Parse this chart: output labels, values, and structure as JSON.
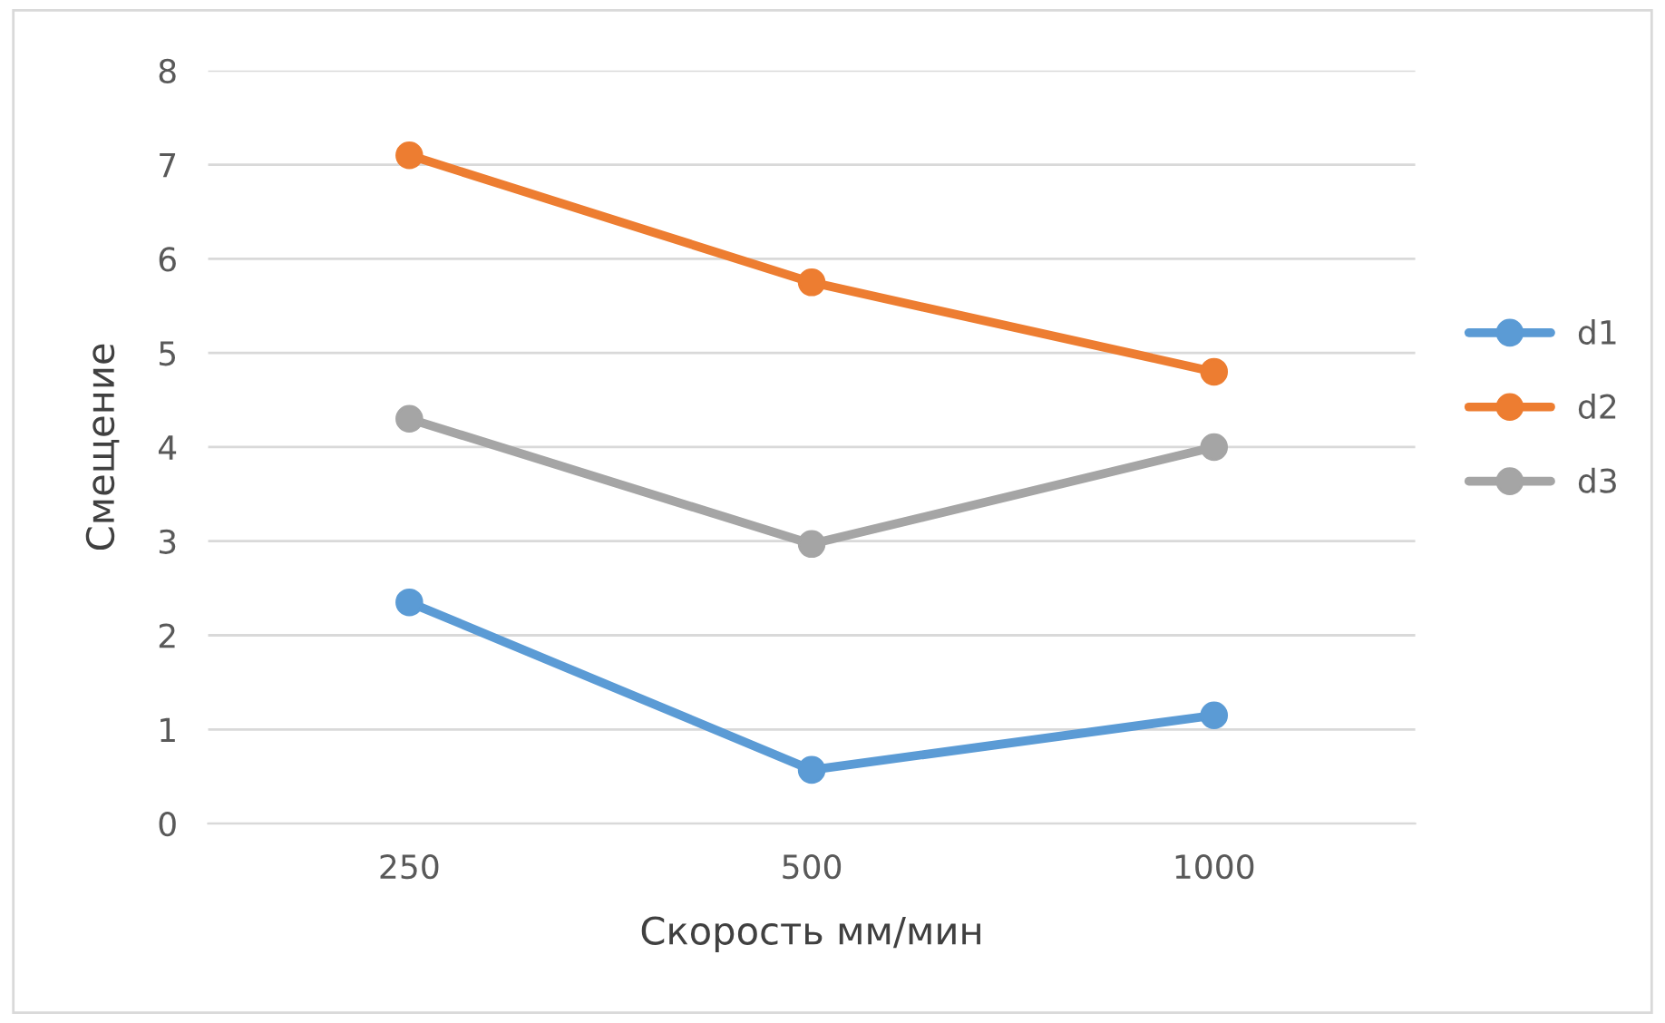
{
  "chart_data": {
    "type": "line",
    "xlabel": "Скорость мм/мин",
    "ylabel": "Смещение",
    "categories": [
      "250",
      "500",
      "1000"
    ],
    "series": [
      {
        "name": "d1",
        "color": "#5b9bd5",
        "values": [
          2.35,
          0.57,
          1.15
        ]
      },
      {
        "name": "d2",
        "color": "#ed7d31",
        "values": [
          7.1,
          5.75,
          4.8
        ]
      },
      {
        "name": "d3",
        "color": "#a5a5a5",
        "values": [
          4.3,
          2.97,
          4.0
        ]
      }
    ],
    "ylim": [
      0,
      8
    ],
    "yticks": [
      0,
      1,
      2,
      3,
      4,
      5,
      6,
      7,
      8
    ],
    "grid": "y",
    "legend": "right",
    "marker": "circle",
    "line_style": "solid"
  }
}
